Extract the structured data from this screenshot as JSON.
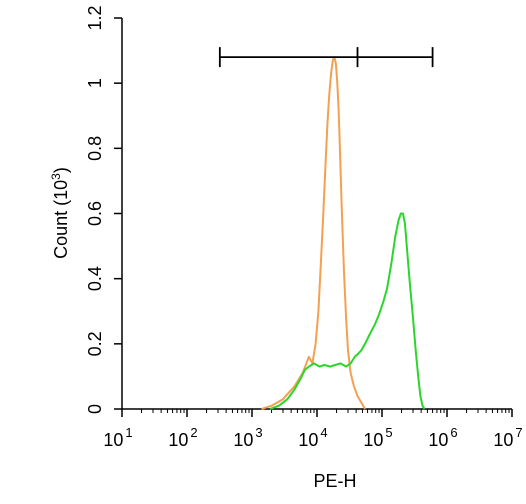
{
  "chart_data": {
    "type": "line",
    "title": "",
    "xlabel": "PE-H",
    "ylabel": "Count",
    "ylabel_unit": "(10",
    "ylabel_unit_exp": "3",
    "ylabel_unit_close": ")",
    "xscale": "log",
    "xlim": [
      10,
      10000000
    ],
    "ylim": [
      0,
      1.2
    ],
    "grid": false,
    "legend": "none",
    "x_ticks": [
      {
        "base": "10",
        "exp": "1",
        "value": 10
      },
      {
        "base": "10",
        "exp": "2",
        "value": 100
      },
      {
        "base": "10",
        "exp": "3",
        "value": 1000
      },
      {
        "base": "10",
        "exp": "4",
        "value": 10000
      },
      {
        "base": "10",
        "exp": "5",
        "value": 100000
      },
      {
        "base": "10",
        "exp": "6",
        "value": 1000000
      },
      {
        "base": "10",
        "exp": "7",
        "value": 10000000
      }
    ],
    "y_ticks": [
      {
        "label": "0",
        "value": 0
      },
      {
        "label": "0.2",
        "value": 0.2
      },
      {
        "label": "0.4",
        "value": 0.4
      },
      {
        "label": "0.6",
        "value": 0.6
      },
      {
        "label": "0.8",
        "value": 0.8
      },
      {
        "label": "1",
        "value": 1.0
      },
      {
        "label": "1.2",
        "value": 1.2
      }
    ],
    "gate": {
      "x_start": 320,
      "x_mid": 42000,
      "x_end": 600000,
      "y": 1.08
    },
    "series": [
      {
        "color": "#f4a052",
        "points": [
          [
            1400,
            0
          ],
          [
            2000,
            0.01
          ],
          [
            3000,
            0.03
          ],
          [
            4500,
            0.07
          ],
          [
            6000,
            0.11
          ],
          [
            7500,
            0.16
          ],
          [
            8500,
            0.14
          ],
          [
            9500,
            0.2
          ],
          [
            10500,
            0.3
          ],
          [
            11500,
            0.45
          ],
          [
            12500,
            0.6
          ],
          [
            13500,
            0.75
          ],
          [
            14500,
            0.88
          ],
          [
            15500,
            0.97
          ],
          [
            16500,
            1.03
          ],
          [
            17500,
            1.07
          ],
          [
            18500,
            1.08
          ],
          [
            19500,
            1.06
          ],
          [
            20500,
            1.0
          ],
          [
            21500,
            0.92
          ],
          [
            22500,
            0.8
          ],
          [
            24000,
            0.62
          ],
          [
            26000,
            0.42
          ],
          [
            28000,
            0.28
          ],
          [
            30000,
            0.18
          ],
          [
            33000,
            0.11
          ],
          [
            37000,
            0.07
          ],
          [
            42000,
            0.04
          ],
          [
            48000,
            0.02
          ],
          [
            55000,
            0
          ]
        ]
      },
      {
        "color": "#2bd62b",
        "points": [
          [
            1900,
            0
          ],
          [
            2600,
            0.01
          ],
          [
            3500,
            0.03
          ],
          [
            4500,
            0.06
          ],
          [
            5500,
            0.09
          ],
          [
            6500,
            0.12
          ],
          [
            7500,
            0.13
          ],
          [
            9000,
            0.14
          ],
          [
            11000,
            0.13
          ],
          [
            13000,
            0.135
          ],
          [
            16000,
            0.13
          ],
          [
            19000,
            0.135
          ],
          [
            23000,
            0.14
          ],
          [
            28000,
            0.13
          ],
          [
            33000,
            0.14
          ],
          [
            38000,
            0.16
          ],
          [
            43000,
            0.17
          ],
          [
            48000,
            0.18
          ],
          [
            55000,
            0.2
          ],
          [
            65000,
            0.23
          ],
          [
            78000,
            0.26
          ],
          [
            90000,
            0.29
          ],
          [
            105000,
            0.33
          ],
          [
            120000,
            0.37
          ],
          [
            140000,
            0.45
          ],
          [
            160000,
            0.53
          ],
          [
            180000,
            0.58
          ],
          [
            195000,
            0.6
          ],
          [
            210000,
            0.6
          ],
          [
            225000,
            0.57
          ],
          [
            245000,
            0.48
          ],
          [
            270000,
            0.38
          ],
          [
            300000,
            0.28
          ],
          [
            330000,
            0.18
          ],
          [
            360000,
            0.1
          ],
          [
            390000,
            0.04
          ],
          [
            420000,
            0.01
          ],
          [
            450000,
            0
          ]
        ]
      }
    ]
  }
}
